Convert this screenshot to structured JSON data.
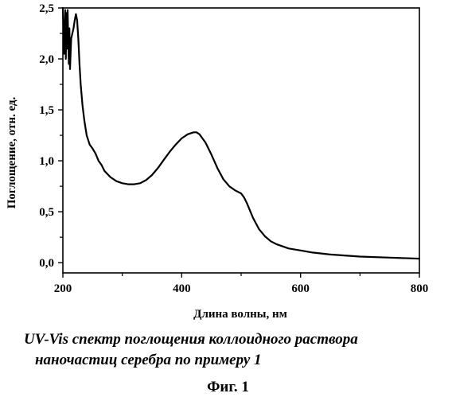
{
  "caption": {
    "line1": "UV-Vis спектр поглощения коллоидного раствора",
    "line2": "наночастиц серебра по примеру 1"
  },
  "figure_label": "Фиг. 1",
  "chart_data": {
    "type": "line",
    "title": "",
    "xlabel": "Длина волны, нм",
    "ylabel": "Поглощение, отн. ед.",
    "xlim": [
      200,
      800
    ],
    "ylim": [
      -0.1,
      2.5
    ],
    "x_ticks": [
      200,
      400,
      600,
      800
    ],
    "x_tick_labels": [
      "200",
      "400",
      "600",
      "800"
    ],
    "y_ticks": [
      0,
      0.5,
      1.0,
      1.5,
      2.0,
      2.5
    ],
    "y_tick_labels": [
      "0,0",
      "0,5",
      "1,0",
      "1,5",
      "2,0",
      "2,5"
    ],
    "grid": false,
    "line_color": "#000000",
    "series": [
      {
        "x": [
          200,
          202,
          204,
          205,
          206,
          207,
          208,
          209,
          210,
          211,
          212,
          213,
          214,
          216,
          218,
          220,
          222,
          224,
          226,
          228,
          230,
          233,
          236,
          240,
          245,
          250,
          255,
          260,
          265,
          270,
          280,
          290,
          300,
          310,
          320,
          330,
          340,
          350,
          360,
          370,
          380,
          390,
          400,
          410,
          420,
          425,
          430,
          440,
          450,
          460,
          470,
          480,
          490,
          500,
          505,
          510,
          520,
          530,
          540,
          550,
          560,
          580,
          600,
          620,
          650,
          700,
          750,
          800
        ],
        "y": [
          2.5,
          2.05,
          2.48,
          2.0,
          2.45,
          2.1,
          2.48,
          2.2,
          1.95,
          2.3,
          1.9,
          2.05,
          2.2,
          2.25,
          2.3,
          2.38,
          2.44,
          2.38,
          2.2,
          1.95,
          1.75,
          1.55,
          1.4,
          1.25,
          1.16,
          1.12,
          1.07,
          1.0,
          0.96,
          0.9,
          0.84,
          0.8,
          0.78,
          0.77,
          0.77,
          0.78,
          0.81,
          0.86,
          0.93,
          1.01,
          1.09,
          1.16,
          1.22,
          1.26,
          1.28,
          1.28,
          1.26,
          1.18,
          1.06,
          0.93,
          0.82,
          0.75,
          0.71,
          0.68,
          0.64,
          0.58,
          0.44,
          0.33,
          0.26,
          0.21,
          0.18,
          0.14,
          0.12,
          0.1,
          0.08,
          0.06,
          0.05,
          0.04
        ]
      }
    ]
  }
}
